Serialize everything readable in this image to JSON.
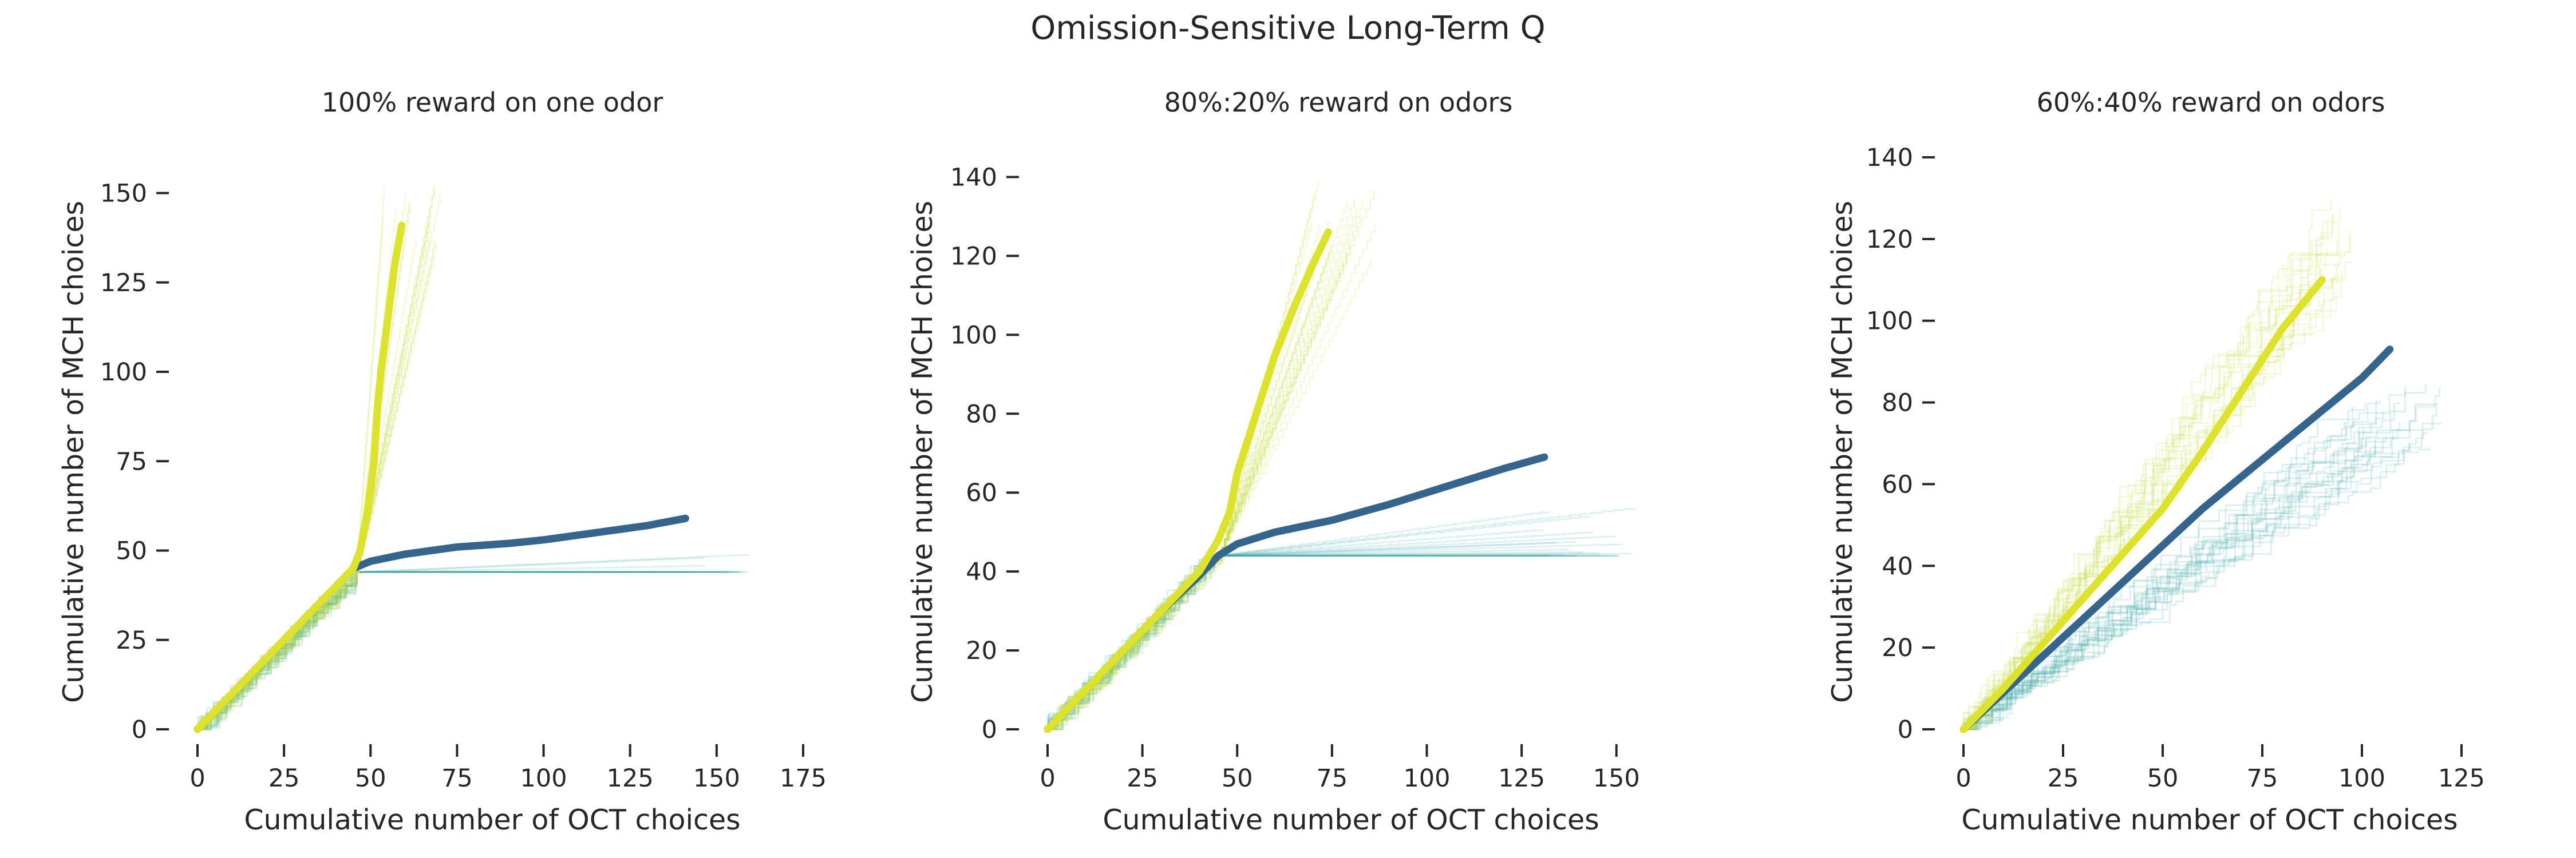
{
  "suptitle": "Omission-Sensitive Long-Term Q",
  "colors": {
    "oct_mean": "#35648d",
    "oct_traces": "#3aa6a6",
    "mch_mean": "#dde32a",
    "mch_traces": "#c6dd3a",
    "text": "#262626"
  },
  "chart_data": [
    {
      "type": "line",
      "title": "100% reward on one odor",
      "xlabel": "Cumulative number of OCT choices",
      "ylabel": "Cumulative number of MCH choices",
      "xlim": [
        0,
        175
      ],
      "ylim": [
        0,
        160
      ],
      "xticks": [
        0,
        25,
        50,
        75,
        100,
        125,
        150,
        175
      ],
      "yticks": [
        0,
        25,
        50,
        75,
        100,
        125,
        150
      ],
      "grid": false,
      "series": [
        {
          "color_key": "oct_mean",
          "x": [
            0,
            10,
            20,
            30,
            40,
            45,
            50,
            60,
            75,
            90,
            100,
            115,
            130,
            141
          ],
          "y": [
            0,
            10,
            20,
            30,
            40,
            45,
            47,
            49,
            51,
            52,
            53,
            55,
            57,
            59
          ]
        },
        {
          "color_key": "mch_mean",
          "x": [
            0,
            10,
            20,
            30,
            40,
            45,
            47,
            49,
            51,
            52,
            53,
            55,
            57,
            59
          ],
          "y": [
            0,
            10,
            20,
            30,
            40,
            45,
            50,
            60,
            75,
            90,
            100,
            115,
            130,
            141
          ]
        }
      ]
    },
    {
      "type": "line",
      "title": "80%:20% reward on odors",
      "xlabel": "Cumulative number of OCT choices",
      "ylabel": "Cumulative number of MCH choices",
      "xlim": [
        0,
        160
      ],
      "ylim": [
        0,
        145
      ],
      "xticks": [
        0,
        25,
        50,
        75,
        100,
        125,
        150
      ],
      "yticks": [
        0,
        20,
        40,
        60,
        80,
        100,
        120,
        140
      ],
      "grid": false,
      "series": [
        {
          "color_key": "oct_mean",
          "x": [
            0,
            10,
            20,
            30,
            40,
            45,
            50,
            60,
            75,
            90,
            100,
            110,
            120,
            131
          ],
          "y": [
            0,
            10,
            20,
            30,
            39,
            44,
            47,
            50,
            53,
            57,
            60,
            63,
            66,
            69
          ]
        },
        {
          "color_key": "mch_mean",
          "x": [
            0,
            10,
            20,
            30,
            40,
            45,
            48,
            50,
            55,
            60,
            65,
            70,
            74
          ],
          "y": [
            0,
            10,
            20,
            30,
            40,
            48,
            55,
            65,
            80,
            95,
            107,
            118,
            126
          ]
        }
      ]
    },
    {
      "type": "line",
      "title": "60%:40% reward on odors",
      "xlabel": "Cumulative number of OCT choices",
      "ylabel": "Cumulative number of MCH choices",
      "xlim": [
        0,
        125
      ],
      "ylim": [
        0,
        140
      ],
      "xticks": [
        0,
        25,
        50,
        75,
        100,
        125
      ],
      "yticks": [
        0,
        20,
        40,
        60,
        80,
        100,
        120,
        140
      ],
      "grid": false,
      "series": [
        {
          "color_key": "oct_mean",
          "x": [
            0,
            10,
            20,
            30,
            40,
            50,
            60,
            70,
            80,
            90,
            100,
            107
          ],
          "y": [
            0,
            9,
            18,
            27,
            36,
            45,
            54,
            62,
            70,
            78,
            86,
            93
          ]
        },
        {
          "color_key": "mch_mean",
          "x": [
            0,
            10,
            20,
            30,
            40,
            50,
            60,
            70,
            80,
            90
          ],
          "y": [
            0,
            10,
            21,
            32,
            43,
            54,
            68,
            83,
            98,
            110
          ]
        }
      ]
    }
  ]
}
